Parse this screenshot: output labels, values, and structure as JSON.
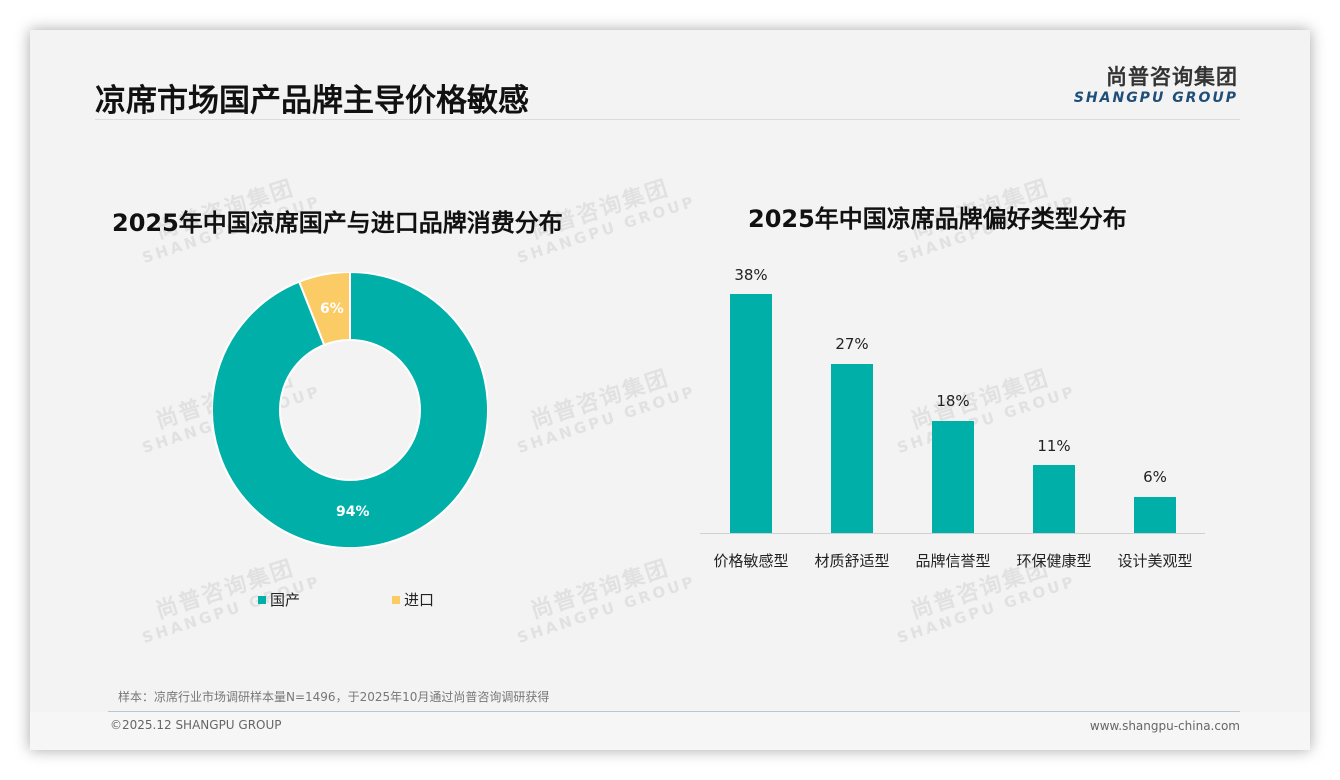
{
  "page": {
    "title": "凉席市场国产品牌主导价格敏感",
    "logo_cn": "尚普咨询集团",
    "logo_en": "SHANGPU GROUP",
    "watermark_cn": "尚普咨询集团",
    "watermark_en": "SHANGPU GROUP"
  },
  "left_chart": {
    "title": "2025年中国凉席国产与进口品牌消费分布",
    "segments": [
      {
        "label": "国产",
        "value": 94,
        "display": "94%",
        "color": "#00b0a8"
      },
      {
        "label": "进口",
        "value": 6,
        "display": "6%",
        "color": "#fbcb66"
      }
    ],
    "legend": [
      {
        "label": "国产",
        "color": "#00b0a8"
      },
      {
        "label": "进口",
        "color": "#fbcb66"
      }
    ]
  },
  "right_chart": {
    "title": "2025年中国凉席品牌偏好类型分布",
    "bars": [
      {
        "label": "价格敏感型",
        "value": 38,
        "display": "38%"
      },
      {
        "label": "材质舒适型",
        "value": 27,
        "display": "27%"
      },
      {
        "label": "品牌信誉型",
        "value": 18,
        "display": "18%"
      },
      {
        "label": "环保健康型",
        "value": 11,
        "display": "11%"
      },
      {
        "label": "设计美观型",
        "value": 6,
        "display": "6%"
      }
    ],
    "bar_color": "#00b0a8"
  },
  "footer": {
    "note": "样本：凉席行业市场调研样本量N=1496，于2025年10月通过尚普咨询调研获得",
    "copyright": "©2025.12 SHANGPU GROUP",
    "website": "www.shangpu-china.com"
  },
  "chart_data": [
    {
      "type": "pie",
      "title": "2025年中国凉席国产与进口品牌消费分布",
      "categories": [
        "国产",
        "进口"
      ],
      "values": [
        94,
        6
      ],
      "unit": "%",
      "donut": true,
      "legend_position": "bottom",
      "colors": [
        "#00b0a8",
        "#fbcb66"
      ]
    },
    {
      "type": "bar",
      "title": "2025年中国凉席品牌偏好类型分布",
      "categories": [
        "价格敏感型",
        "材质舒适型",
        "品牌信誉型",
        "环保健康型",
        "设计美观型"
      ],
      "values": [
        38,
        27,
        18,
        11,
        6
      ],
      "unit": "%",
      "xlabel": "",
      "ylabel": "",
      "ylim": [
        0,
        40
      ],
      "grid": false,
      "data_labels": true,
      "colors": [
        "#00b0a8"
      ]
    }
  ]
}
